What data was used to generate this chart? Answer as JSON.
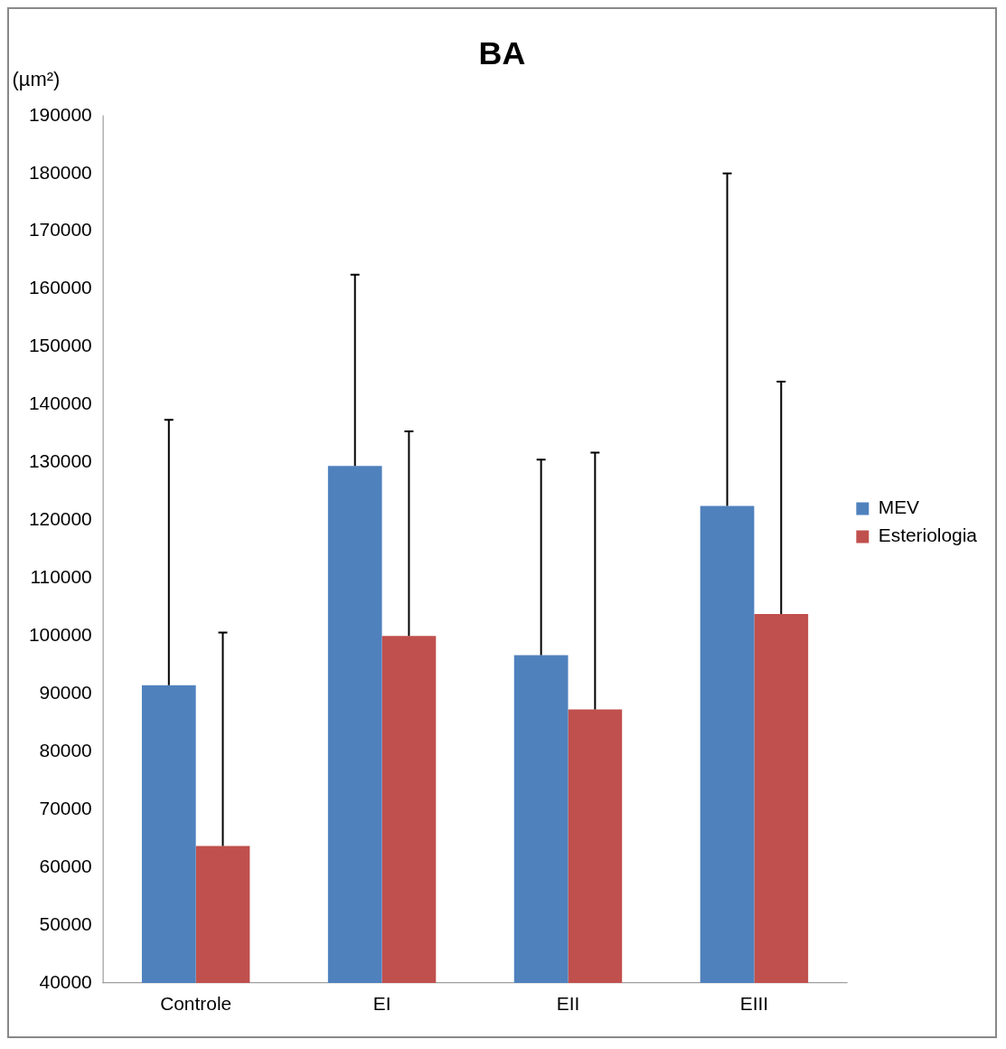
{
  "chart_data": {
    "type": "bar",
    "title": "BA",
    "ylabel": "(µm²)",
    "categories": [
      "Controle",
      "EI",
      "EII",
      "EIII"
    ],
    "series": [
      {
        "name": "MEV",
        "color": "#4f81bd",
        "values": [
          91500,
          129400,
          96700,
          122500
        ],
        "errors": [
          [
            91500,
            137400
          ],
          [
            129400,
            162500
          ],
          [
            96700,
            130500
          ],
          [
            122500,
            180000
          ]
        ]
      },
      {
        "name": "Esteriologia",
        "color": "#c0504d",
        "values": [
          63700,
          100000,
          87300,
          103800
        ],
        "errors": [
          [
            63700,
            100600
          ],
          [
            100000,
            135400
          ],
          [
            87300,
            131700
          ],
          [
            103800,
            144000
          ]
        ]
      }
    ],
    "ylim": [
      40000,
      190000
    ],
    "yticks": [
      40000,
      50000,
      60000,
      70000,
      80000,
      90000,
      100000,
      110000,
      120000,
      130000,
      140000,
      150000,
      160000,
      170000,
      180000,
      190000
    ],
    "grid": false,
    "legend": "right"
  }
}
